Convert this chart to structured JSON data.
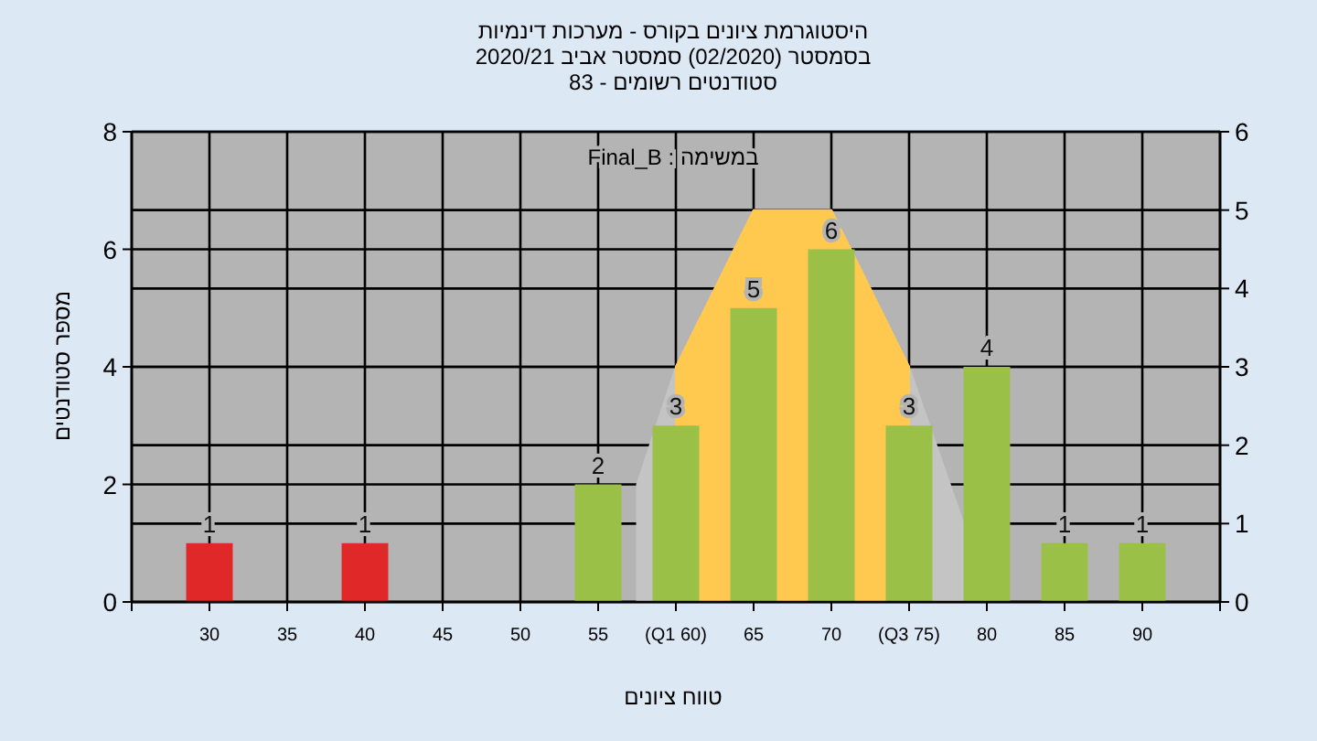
{
  "chart_data": {
    "type": "bar",
    "title": "היסטוגרמת ציונים בקורס - מערכות דינמיות",
    "subtitle": "בסמסטר  (02/2020)  סמסטר אביב 2020/21",
    "annotations": [
      "סטודנטים רשומים - 83",
      "Final_B : במשימה"
    ],
    "xlabel": "טווח ציונים",
    "ylabel": "מספר סטודנטים",
    "xlim": [
      25,
      95
    ],
    "xticks": [
      {
        "value": 25,
        "label": null
      },
      30,
      35,
      40,
      45,
      50,
      55,
      {
        "value": 60,
        "label": "(Q1 60)"
      },
      65,
      70,
      {
        "value": 75,
        "label": "(Q3 75)"
      },
      80,
      85,
      90,
      {
        "value": 95,
        "label": null
      }
    ],
    "ylim": [
      0,
      8
    ],
    "yticks": [
      0,
      2,
      4,
      6,
      8
    ],
    "y2lim": [
      0,
      6
    ],
    "y2ticks": [
      0,
      1,
      2,
      3,
      4,
      5,
      6
    ],
    "grid": true,
    "series": [
      {
        "type": "area",
        "axis": "y2",
        "color": "#c4c4c4",
        "x": [
          57.5,
          60,
          65,
          70,
          75,
          78.5
        ],
        "values": [
          1.5,
          3,
          5,
          5,
          3,
          1
        ]
      },
      {
        "type": "area",
        "axis": "y2",
        "color": "#ffc94f",
        "x": [
          60,
          65,
          70,
          75
        ],
        "values": [
          3,
          5,
          5,
          3
        ]
      },
      {
        "type": "bar",
        "data_labels": true,
        "x": [
          30,
          40,
          55,
          60,
          65,
          70,
          75,
          80,
          85,
          90
        ],
        "values": [
          1,
          1,
          2,
          3,
          5,
          6,
          3,
          4,
          1,
          1
        ],
        "colors": [
          "#e02828",
          "#e02828",
          "#9bc048",
          "#9bc048",
          "#9bc048",
          "#9bc048",
          "#9bc048",
          "#9bc048",
          "#9bc048",
          "#9bc048"
        ]
      }
    ]
  }
}
